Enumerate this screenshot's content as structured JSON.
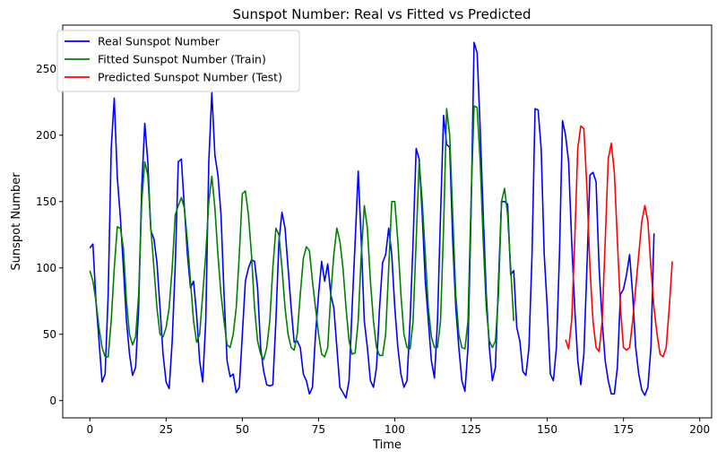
{
  "chart_data": {
    "type": "line",
    "title": "Sunspot Number: Real vs Fitted vs Predicted",
    "xlabel": "Time",
    "ylabel": "Sunspot Number",
    "xlim": [
      -8.9,
      203.9
    ],
    "ylim": [
      -13,
      283
    ],
    "xticks": [
      0,
      25,
      50,
      75,
      100,
      125,
      150,
      175,
      200
    ],
    "yticks": [
      0,
      50,
      100,
      150,
      200,
      250
    ],
    "grid": false,
    "legend_position": "top-left",
    "series": [
      {
        "name": "Real Sunspot Number",
        "color": "#0000ff",
        "x_start": 0,
        "values": [
          115,
          118,
          75,
          45,
          14,
          20,
          80,
          190,
          228,
          168,
          138,
          100,
          60,
          35,
          19,
          25,
          70,
          160,
          209,
          180,
          128,
          122,
          104,
          70,
          35,
          14,
          9,
          45,
          102,
          180,
          182,
          145,
          110,
          85,
          90,
          65,
          30,
          14,
          60,
          180,
          232,
          185,
          170,
          140,
          80,
          30,
          18,
          20,
          6,
          10,
          50,
          90,
          100,
          106,
          105,
          85,
          40,
          22,
          12,
          11,
          12,
          60,
          120,
          142,
          130,
          100,
          70,
          44,
          45,
          40,
          20,
          15,
          5,
          10,
          50,
          80,
          105,
          90,
          103,
          80,
          70,
          40,
          10,
          6,
          2,
          15,
          70,
          120,
          173,
          120,
          60,
          40,
          15,
          10,
          25,
          70,
          104,
          110,
          130,
          110,
          70,
          40,
          20,
          10,
          15,
          60,
          120,
          190,
          182,
          140,
          90,
          60,
          30,
          17,
          60,
          140,
          215,
          193,
          191,
          120,
          70,
          40,
          15,
          7,
          40,
          140,
          270,
          262,
          205,
          140,
          80,
          40,
          15,
          25,
          90,
          150,
          150,
          148,
          95,
          98,
          55,
          45,
          22,
          19,
          40,
          110,
          220,
          219,
          190,
          110,
          70,
          20,
          15,
          40,
          110,
          211,
          200,
          180,
          120,
          70,
          30,
          12,
          35,
          100,
          170,
          172,
          165,
          100,
          60,
          30,
          15,
          5,
          5,
          25,
          80,
          84,
          95,
          110,
          80,
          40,
          20,
          8,
          4,
          10,
          40,
          126
        ]
      },
      {
        "name": "Fitted Sunspot Number (Train)",
        "color": "#008000",
        "x_start": 0,
        "values": [
          98,
          90,
          75,
          55,
          40,
          33,
          33,
          60,
          100,
          131,
          130,
          115,
          75,
          50,
          42,
          48,
          80,
          150,
          180,
          170,
          130,
          100,
          70,
          50,
          48,
          55,
          70,
          100,
          140,
          147,
          153,
          145,
          120,
          90,
          60,
          44,
          50,
          80,
          110,
          150,
          169,
          145,
          110,
          80,
          60,
          42,
          40,
          50,
          70,
          110,
          156,
          158,
          140,
          110,
          70,
          45,
          35,
          31,
          40,
          60,
          100,
          130,
          125,
          100,
          70,
          50,
          40,
          38,
          50,
          80,
          107,
          116,
          113,
          90,
          70,
          50,
          35,
          33,
          40,
          80,
          110,
          130,
          120,
          100,
          70,
          45,
          35,
          36,
          60,
          110,
          147,
          130,
          90,
          60,
          40,
          34,
          34,
          50,
          100,
          150,
          150,
          120,
          80,
          50,
          40,
          39,
          60,
          120,
          180,
          150,
          110,
          70,
          48,
          40,
          40,
          60,
          130,
          220,
          200,
          140,
          80,
          50,
          40,
          39,
          60,
          150,
          222,
          221,
          180,
          120,
          70,
          45,
          40,
          45,
          80,
          150,
          160,
          140,
          100,
          60
        ]
      },
      {
        "name": "Predicted Sunspot Number (Test)",
        "color": "#ff0000",
        "x_start": 156,
        "values": [
          46,
          39,
          60,
          120,
          190,
          207,
          205,
          160,
          100,
          60,
          40,
          37,
          60,
          120,
          182,
          194,
          172,
          120,
          70,
          40,
          38,
          40,
          60,
          85,
          110,
          135,
          147,
          135,
          100,
          70,
          50,
          35,
          33,
          40,
          70,
          105
        ]
      }
    ]
  }
}
